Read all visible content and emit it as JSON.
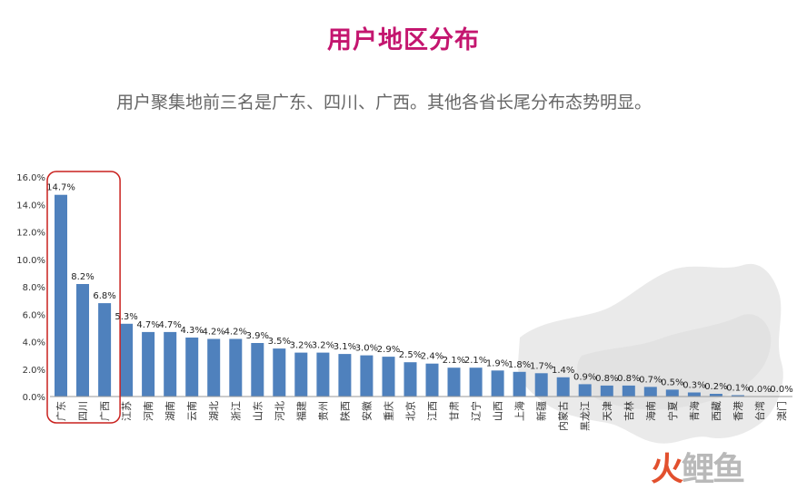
{
  "header": {
    "title": "用户地区分布",
    "subtitle": "用户聚集地前三名是广东、四川、广西。其他各省长尾分布态势明显。"
  },
  "watermark": {
    "part1": "火",
    "part2": "鲤鱼"
  },
  "colors": {
    "title": "#c4166f",
    "bar": "#4f81bd",
    "highlight": "#c9211e"
  },
  "chart_data": {
    "type": "bar",
    "categories": [
      "广东",
      "四川",
      "广西",
      "江苏",
      "河南",
      "湖南",
      "云南",
      "湖北",
      "浙江",
      "山东",
      "河北",
      "福建",
      "贵州",
      "陕西",
      "安徽",
      "重庆",
      "北京",
      "江西",
      "甘肃",
      "辽宁",
      "山西",
      "上海",
      "新疆",
      "内蒙古",
      "黑龙江",
      "天津",
      "吉林",
      "海南",
      "宁夏",
      "青海",
      "西藏",
      "香港",
      "台湾",
      "澳门"
    ],
    "values": [
      14.7,
      8.2,
      6.8,
      5.3,
      4.7,
      4.7,
      4.3,
      4.2,
      4.2,
      3.9,
      3.5,
      3.2,
      3.2,
      3.1,
      3.0,
      2.9,
      2.5,
      2.4,
      2.1,
      2.1,
      1.9,
      1.8,
      1.7,
      1.4,
      0.9,
      0.8,
      0.8,
      0.7,
      0.5,
      0.3,
      0.2,
      0.1,
      0.0,
      0.0
    ],
    "data_labels": [
      "14.7%",
      "8.2%",
      "6.8%",
      "5.3%",
      "4.7%",
      "4.7%",
      "4.3%",
      "4.2%",
      "4.2%",
      "3.9%",
      "3.5%",
      "3.2%",
      "3.2%",
      "3.1%",
      "3.0%",
      "2.9%",
      "2.5%",
      "2.4%",
      "2.1%",
      "2.1%",
      "1.9%",
      "1.8%",
      "1.7%",
      "1.4%",
      "0.9%",
      "0.8%",
      "0.8%",
      "0.7%",
      "0.5%",
      "0.3%",
      "0.2%",
      "0.1%",
      "0.0%",
      "0.0%"
    ],
    "y_ticks": [
      "0.0%",
      "2.0%",
      "4.0%",
      "6.0%",
      "8.0%",
      "10.0%",
      "12.0%",
      "14.0%",
      "16.0%"
    ],
    "ylim": [
      0,
      16
    ],
    "grid": false,
    "highlight_first_n": 3
  }
}
